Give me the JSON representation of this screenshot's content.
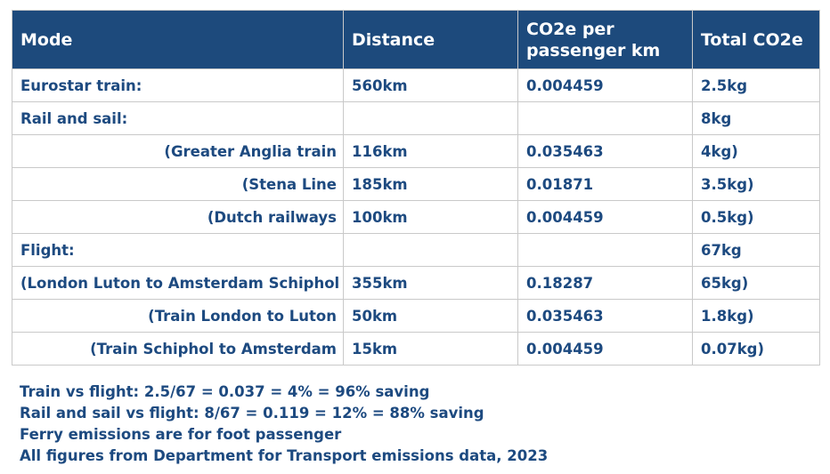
{
  "table": {
    "headers": {
      "mode": "Mode",
      "distance": "Distance",
      "co2_per_km_line1": "CO2e per",
      "co2_per_km_line2": "passenger km",
      "total": "Total CO2e"
    },
    "rows": [
      {
        "mode": "Eurostar train:",
        "distance": "560km",
        "co2_per_km": "0.004459",
        "total": "2.5kg"
      },
      {
        "mode": "Rail and sail:",
        "distance": "",
        "co2_per_km": "",
        "total": "8kg"
      },
      {
        "mode": "(Greater Anglia train",
        "distance": "116km",
        "co2_per_km": "0.035463",
        "total": "4kg)"
      },
      {
        "mode": "(Stena Line",
        "distance": "185km",
        "co2_per_km": "0.01871",
        "total": "3.5kg)"
      },
      {
        "mode": "(Dutch railways",
        "distance": "100km",
        "co2_per_km": "0.004459",
        "total": "0.5kg)"
      },
      {
        "mode": "Flight:",
        "distance": "",
        "co2_per_km": "",
        "total": "67kg"
      },
      {
        "mode": "(London Luton to Amsterdam Schiphol",
        "distance": "355km",
        "co2_per_km": "0.18287",
        "total": "65kg)"
      },
      {
        "mode": "(Train London to Luton",
        "distance": "50km",
        "co2_per_km": "0.035463",
        "total": "1.8kg)"
      },
      {
        "mode": "(Train Schiphol to Amsterdam",
        "distance": "15km",
        "co2_per_km": "0.004459",
        "total": "0.07kg)"
      }
    ]
  },
  "notes": [
    "Train vs flight: 2.5/67 = 0.037 = 4% = 96% saving",
    "Rail and sail vs flight: 8/67 = 0.119 = 12% = 88% saving",
    "Ferry emissions are for foot passenger",
    "All figures from Department for Transport emissions data, 2023"
  ],
  "colors": {
    "header_bg": "#1d4a7c",
    "text": "#1d4a80",
    "border": "#c9c9c9"
  }
}
